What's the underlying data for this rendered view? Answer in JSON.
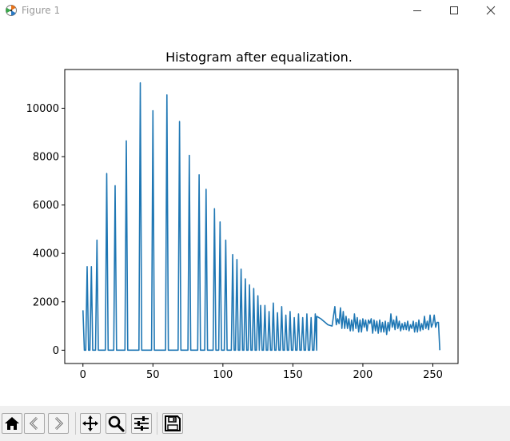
{
  "window": {
    "title": "Figure 1",
    "icons": [
      "matplotlib-icon",
      "minimize-icon",
      "maximize-icon",
      "close-icon"
    ]
  },
  "toolbar": {
    "buttons": [
      {
        "name": "home-button",
        "icon": "home-icon"
      },
      {
        "name": "back-button",
        "icon": "back-arrow-icon"
      },
      {
        "name": "forward-button",
        "icon": "forward-arrow-icon"
      },
      {
        "name": "pan-button",
        "icon": "pan-icon"
      },
      {
        "name": "zoom-button",
        "icon": "zoom-icon"
      },
      {
        "name": "configure-subplots-button",
        "icon": "sliders-icon"
      },
      {
        "name": "save-button",
        "icon": "save-icon"
      }
    ]
  },
  "chart_data": {
    "type": "line",
    "title": "Histogram after equalization.",
    "xlabel": "",
    "ylabel": "",
    "xlim": [
      -13,
      268
    ],
    "ylim": [
      -550,
      11600
    ],
    "xticks": [
      0,
      50,
      100,
      150,
      200,
      250
    ],
    "yticks": [
      0,
      2000,
      4000,
      6000,
      8000,
      10000
    ],
    "grid": false,
    "color": "#1f77b4",
    "spikes": [
      [
        0,
        1650
      ],
      [
        3,
        3450
      ],
      [
        6,
        3450
      ],
      [
        10,
        4550
      ],
      [
        17,
        7300
      ],
      [
        23,
        6800
      ],
      [
        31,
        8650
      ],
      [
        41,
        11050
      ],
      [
        50,
        9900
      ],
      [
        60,
        10550
      ],
      [
        69,
        9450
      ],
      [
        76,
        8050
      ],
      [
        83,
        7250
      ],
      [
        88,
        6650
      ],
      [
        94,
        5850
      ],
      [
        98,
        5300
      ],
      [
        102,
        4550
      ],
      [
        107,
        3950
      ],
      [
        110,
        3750
      ],
      [
        113,
        3350
      ],
      [
        116,
        2950
      ],
      [
        119,
        2700
      ],
      [
        122,
        2550
      ],
      [
        125,
        2250
      ],
      [
        127,
        1850
      ],
      [
        130,
        1850
      ],
      [
        133,
        1600
      ],
      [
        136,
        1950
      ],
      [
        139,
        1550
      ],
      [
        142,
        1800
      ],
      [
        145,
        1450
      ],
      [
        148,
        1600
      ],
      [
        151,
        1350
      ],
      [
        154,
        1500
      ],
      [
        157,
        1350
      ],
      [
        160,
        1500
      ],
      [
        163,
        1350
      ],
      [
        166,
        1500
      ]
    ],
    "tail": [
      [
        167,
        1400
      ],
      [
        170,
        1300
      ],
      [
        173,
        1150
      ],
      [
        175,
        1050
      ],
      [
        178,
        1000
      ],
      [
        180,
        1800
      ],
      [
        181,
        1050
      ],
      [
        182,
        1300
      ],
      [
        183,
        1100
      ],
      [
        184,
        1750
      ],
      [
        185,
        900
      ],
      [
        186,
        1600
      ],
      [
        187,
        900
      ],
      [
        188,
        1400
      ],
      [
        189,
        900
      ],
      [
        190,
        1300
      ],
      [
        191,
        800
      ],
      [
        192,
        1250
      ],
      [
        193,
        800
      ],
      [
        194,
        1500
      ],
      [
        195,
        900
      ],
      [
        196,
        1350
      ],
      [
        197,
        750
      ],
      [
        198,
        1250
      ],
      [
        199,
        750
      ],
      [
        200,
        1300
      ],
      [
        201,
        950
      ],
      [
        202,
        1250
      ],
      [
        203,
        800
      ],
      [
        204,
        1250
      ],
      [
        205,
        1100
      ],
      [
        206,
        1300
      ],
      [
        207,
        700
      ],
      [
        208,
        1250
      ],
      [
        209,
        800
      ],
      [
        210,
        1200
      ],
      [
        211,
        700
      ],
      [
        212,
        1250
      ],
      [
        213,
        750
      ],
      [
        214,
        1150
      ],
      [
        215,
        750
      ],
      [
        216,
        1200
      ],
      [
        217,
        650
      ],
      [
        218,
        1150
      ],
      [
        219,
        800
      ],
      [
        220,
        1500
      ],
      [
        221,
        950
      ],
      [
        222,
        1250
      ],
      [
        223,
        850
      ],
      [
        224,
        1400
      ],
      [
        225,
        900
      ],
      [
        226,
        1200
      ],
      [
        227,
        800
      ],
      [
        228,
        1100
      ],
      [
        229,
        850
      ],
      [
        230,
        1150
      ],
      [
        231,
        850
      ],
      [
        232,
        1200
      ],
      [
        233,
        800
      ],
      [
        234,
        1050
      ],
      [
        235,
        900
      ],
      [
        236,
        1200
      ],
      [
        237,
        750
      ],
      [
        238,
        1150
      ],
      [
        239,
        750
      ],
      [
        240,
        1250
      ],
      [
        241,
        800
      ],
      [
        242,
        1100
      ],
      [
        243,
        850
      ],
      [
        244,
        1400
      ],
      [
        245,
        900
      ],
      [
        246,
        1200
      ],
      [
        247,
        850
      ],
      [
        248,
        1450
      ],
      [
        249,
        950
      ],
      [
        250,
        1100
      ],
      [
        251,
        1450
      ],
      [
        252,
        950
      ],
      [
        253,
        1150
      ],
      [
        254,
        1150
      ],
      [
        255,
        0
      ]
    ]
  }
}
